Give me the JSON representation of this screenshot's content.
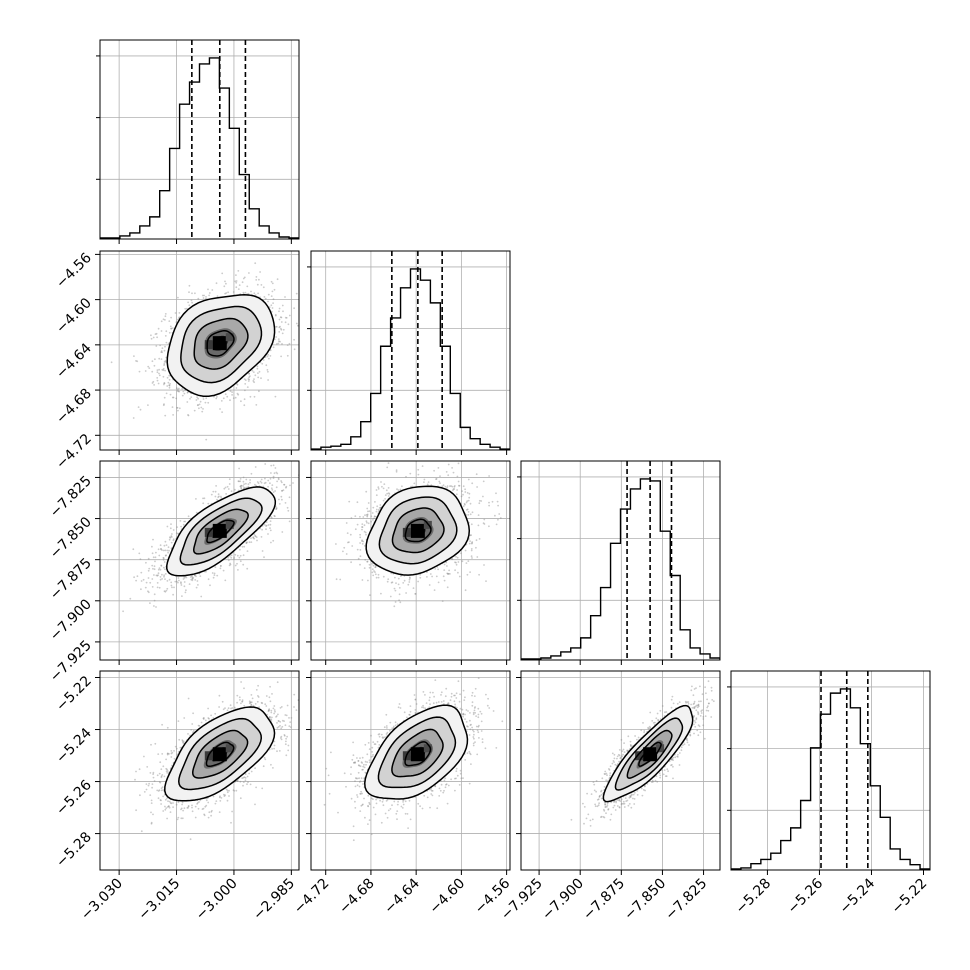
{
  "chart_data": {
    "type": "corner",
    "parameters": [
      {
        "range": [
          -3.035,
          -2.983
        ],
        "ticks": [
          -3.03,
          -3.015,
          -3.0,
          -2.985
        ],
        "tick_labels": [
          "−3.030",
          "−3.015",
          "−3.000",
          "−2.985"
        ],
        "quantiles": [
          -3.011,
          -3.0037,
          -2.997
        ],
        "hist": [
          0.5,
          0.5,
          1.5,
          3,
          6.5,
          11,
          24,
          45,
          67,
          78,
          87,
          90,
          75,
          55,
          32,
          15,
          6.5,
          3,
          1,
          0.5
        ]
      },
      {
        "range": [
          -4.733,
          -4.557
        ],
        "ticks": [
          -4.72,
          -4.68,
          -4.64,
          -4.6,
          -4.56
        ],
        "tick_labels": [
          "−4.72",
          "−4.68",
          "−4.64",
          "−4.60",
          "−4.56"
        ],
        "quantiles": [
          -4.6615,
          -4.6385,
          -4.617
        ],
        "hist": [
          0.5,
          1.5,
          2,
          3,
          7,
          15,
          30,
          55,
          70,
          86,
          96,
          90,
          78,
          55,
          30,
          12,
          6,
          3,
          1.5,
          0.5
        ]
      },
      {
        "range": [
          -7.936,
          -7.815
        ],
        "ticks": [
          -7.925,
          -7.9,
          -7.875,
          -7.85,
          -7.825
        ],
        "tick_labels": [
          "−7.925",
          "−7.900",
          "−7.875",
          "−7.850",
          "−7.825"
        ],
        "quantiles": [
          -7.8715,
          -7.8575,
          -7.8445
        ],
        "hist": [
          0.5,
          0.5,
          1,
          2,
          4,
          6,
          11,
          22,
          36,
          58,
          75,
          85,
          90,
          89,
          64,
          42,
          15,
          6,
          3,
          1
        ]
      },
      {
        "range": [
          -5.294,
          -5.2175
        ],
        "ticks": [
          -5.28,
          -5.26,
          -5.24,
          -5.22
        ],
        "tick_labels": [
          "−5.28",
          "−5.26",
          "−5.24",
          "−5.22"
        ],
        "quantiles": [
          -5.2594,
          -5.2495,
          -5.2414
        ],
        "hist": [
          0.5,
          1,
          3,
          5,
          8,
          14,
          20,
          33,
          58,
          74,
          84,
          86,
          77,
          60,
          40,
          25,
          10,
          5,
          2.5,
          0.5
        ]
      }
    ],
    "pairs": [
      {
        "x": 0,
        "y": 1,
        "rho": 0.3
      },
      {
        "x": 0,
        "y": 2,
        "rho": 0.72
      },
      {
        "x": 1,
        "y": 2,
        "rho": 0.2
      },
      {
        "x": 0,
        "y": 3,
        "rho": 0.6
      },
      {
        "x": 1,
        "y": 3,
        "rho": 0.5
      },
      {
        "x": 2,
        "y": 3,
        "rho": 0.85
      }
    ],
    "samples_per_panel": 2600,
    "contour_levels_sigma": [
      0.5,
      1.0,
      1.5,
      2.0
    ],
    "grid": true,
    "colors": {
      "points": "#8c8c8c",
      "lines": "#000000",
      "grid": "#b0b0b0",
      "density_dark": "#000000"
    }
  }
}
